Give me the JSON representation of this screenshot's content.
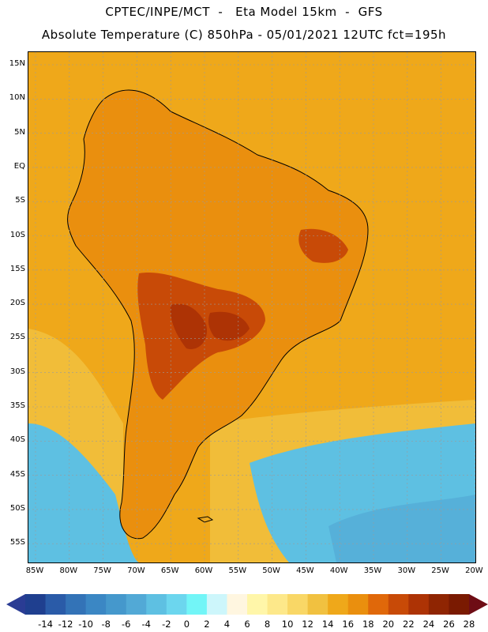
{
  "header": {
    "line1": "CPTEC/INPE/MCT  -   Eta Model 15km  -  GFS",
    "line2": "Absolute Temperature (C) 850hPa - 05/01/2021 12UTC fct=195h"
  },
  "axes": {
    "lat_labels": [
      "15N",
      "10N",
      "5N",
      "EQ",
      "5S",
      "10S",
      "15S",
      "20S",
      "25S",
      "30S",
      "35S",
      "40S",
      "45S",
      "50S",
      "55S"
    ],
    "lon_labels": [
      "85W",
      "80W",
      "75W",
      "70W",
      "65W",
      "60W",
      "55W",
      "50W",
      "45W",
      "40W",
      "35W",
      "30W",
      "25W",
      "20W"
    ]
  },
  "colorbar": {
    "labels": [
      "-14",
      "-12",
      "-10",
      "-8",
      "-6",
      "-4",
      "-2",
      "0",
      "2",
      "4",
      "6",
      "8",
      "10",
      "12",
      "14",
      "16",
      "18",
      "20",
      "22",
      "24",
      "26",
      "28"
    ],
    "colors": [
      "#1f3f8f",
      "#2a5ba8",
      "#3373b7",
      "#3b87c4",
      "#4598cc",
      "#52a9d6",
      "#5ec0e2",
      "#6cd6ee",
      "#72f5f7",
      "#cdf6fb",
      "#fff6e0",
      "#fff6a9",
      "#fde88a",
      "#f9d766",
      "#f1c140",
      "#efa81a",
      "#ea8f0e",
      "#e0680a",
      "#c84a07",
      "#ad3305",
      "#8f2502",
      "#7a1a01"
    ],
    "low_color": "#2a3c94",
    "high_color": "#6e0d15"
  },
  "map": {
    "base_color": "#efa81a",
    "land_color": "#ea8f0e",
    "hot_color": "#c84a07",
    "hottest_color": "#ad3305",
    "cool_color": "#f1c140",
    "cold_ocean_color": "#5ec0e2",
    "coast_color": "#000000"
  }
}
